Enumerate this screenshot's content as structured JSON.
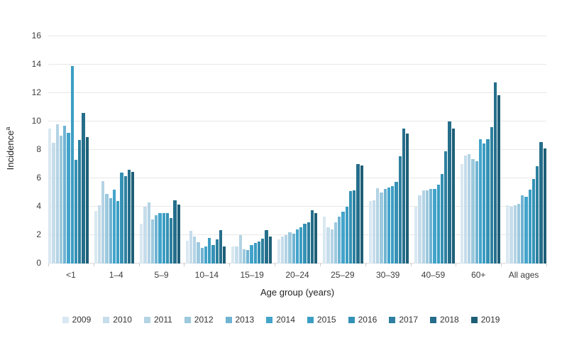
{
  "chart_data": {
    "type": "bar",
    "title": "",
    "xlabel": "Age group (years)",
    "ylabel": "Incidence",
    "ylabel_superscript": "a",
    "ylim": [
      0,
      16
    ],
    "yticks": [
      0,
      2,
      4,
      6,
      8,
      10,
      12,
      14,
      16
    ],
    "grid": true,
    "legend_position": "bottom",
    "categories": [
      "<1",
      "1–4",
      "5–9",
      "10–14",
      "15–19",
      "20–24",
      "25–29",
      "30–39",
      "40–59",
      "60+",
      "All ages"
    ],
    "series": [
      {
        "name": "2009",
        "color": "#d9e8f1",
        "values": [
          9.5,
          3.7,
          2.8,
          1.6,
          1.2,
          1.7,
          3.3,
          4.4,
          4.0,
          7.0,
          4.1
        ]
      },
      {
        "name": "2010",
        "color": "#c6ddeb",
        "values": [
          8.5,
          4.1,
          4.0,
          2.3,
          1.2,
          1.9,
          2.55,
          4.45,
          4.8,
          7.6,
          4.0
        ]
      },
      {
        "name": "2011",
        "color": "#b3d3e4",
        "values": [
          9.8,
          5.8,
          4.3,
          1.9,
          2.0,
          2.0,
          2.4,
          5.3,
          5.15,
          7.7,
          4.1
        ]
      },
      {
        "name": "2012",
        "color": "#9cc9de",
        "values": [
          9.0,
          4.9,
          3.1,
          1.5,
          1.0,
          2.2,
          2.9,
          5.0,
          5.15,
          7.35,
          4.2
        ]
      },
      {
        "name": "2013",
        "color": "#6fb3d2",
        "values": [
          9.7,
          4.6,
          3.4,
          1.1,
          0.95,
          2.1,
          3.3,
          5.25,
          5.25,
          7.2,
          4.8
        ]
      },
      {
        "name": "2014",
        "color": "#42a4cb",
        "values": [
          9.2,
          5.2,
          3.55,
          1.2,
          1.3,
          2.4,
          3.65,
          5.35,
          5.25,
          8.75,
          4.7
        ]
      },
      {
        "name": "2015",
        "color": "#3c9dc3",
        "values": [
          13.9,
          4.4,
          3.55,
          1.8,
          1.45,
          2.55,
          4.0,
          5.45,
          5.55,
          8.45,
          5.2
        ]
      },
      {
        "name": "2016",
        "color": "#3591b5",
        "values": [
          7.3,
          6.4,
          3.55,
          1.3,
          1.55,
          2.8,
          5.1,
          5.75,
          6.3,
          8.75,
          5.95
        ]
      },
      {
        "name": "2017",
        "color": "#2d809f",
        "values": [
          8.7,
          6.15,
          3.2,
          1.7,
          1.75,
          2.9,
          5.15,
          7.55,
          7.9,
          9.6,
          6.85
        ]
      },
      {
        "name": "2018",
        "color": "#256e8b",
        "values": [
          10.6,
          6.6,
          4.45,
          2.35,
          2.35,
          3.75,
          7.0,
          9.5,
          10.0,
          12.75,
          8.55
        ]
      },
      {
        "name": "2019",
        "color": "#1e5f78",
        "values": [
          8.9,
          6.45,
          4.15,
          1.2,
          1.9,
          3.55,
          6.9,
          9.15,
          9.5,
          11.85,
          8.1
        ]
      }
    ]
  }
}
